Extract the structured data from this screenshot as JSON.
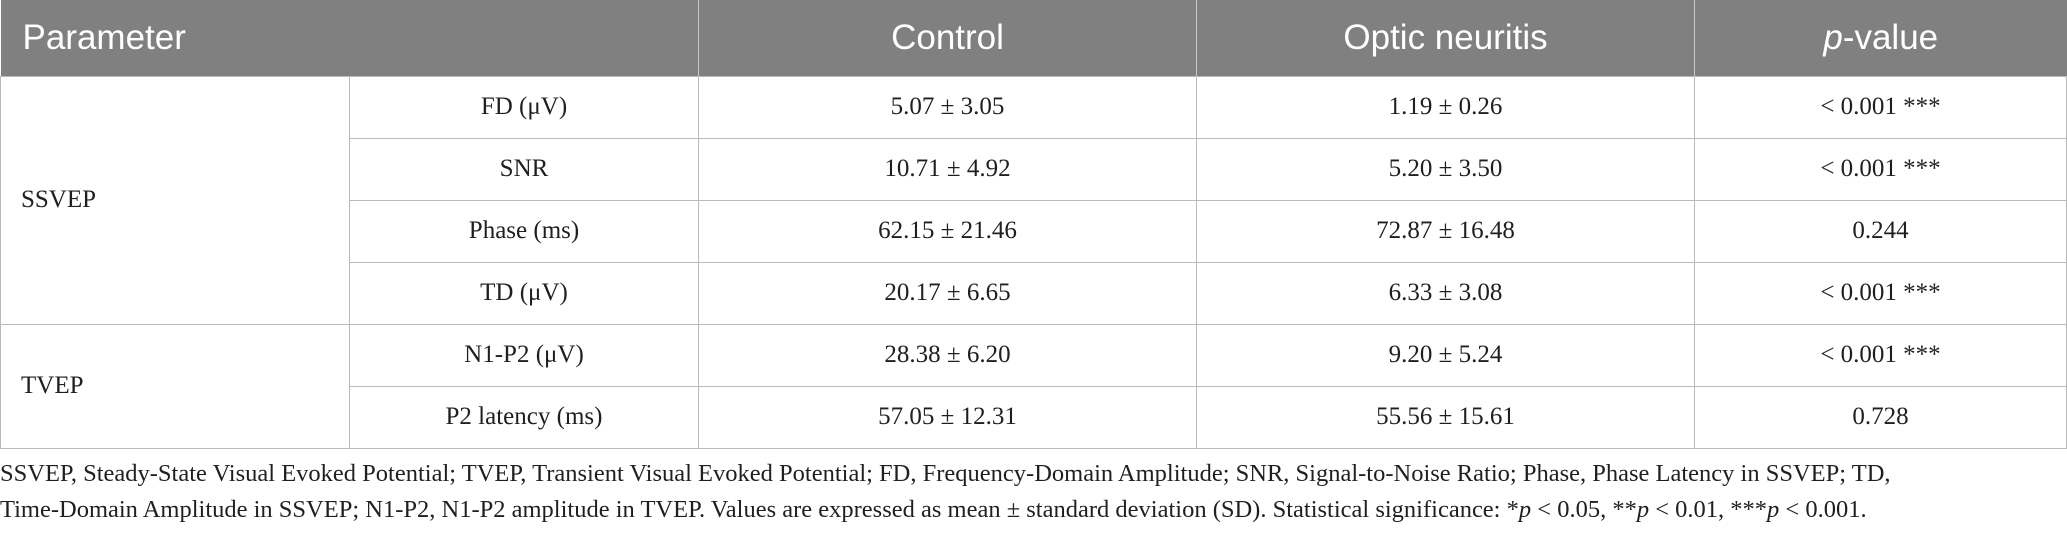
{
  "table": {
    "headers": {
      "parameter": "Parameter",
      "control": "Control",
      "optic_neuritis": "Optic neuritis",
      "p_value_italic": "p",
      "p_value_rest": "-value"
    },
    "groups": [
      {
        "name": "SSVEP",
        "rows": [
          {
            "parameter": "FD (μV)",
            "control": "5.07 ± 3.05",
            "optic_neuritis": "1.19 ± 0.26",
            "p_value": "< 0.001 ***"
          },
          {
            "parameter": "SNR",
            "control": "10.71 ± 4.92",
            "optic_neuritis": "5.20 ± 3.50",
            "p_value": "< 0.001 ***"
          },
          {
            "parameter": "Phase (ms)",
            "control": "62.15 ± 21.46",
            "optic_neuritis": "72.87 ± 16.48",
            "p_value": "0.244"
          },
          {
            "parameter": "TD (μV)",
            "control": "20.17 ± 6.65",
            "optic_neuritis": "6.33 ± 3.08",
            "p_value": "< 0.001 ***"
          }
        ]
      },
      {
        "name": "TVEP",
        "rows": [
          {
            "parameter": "N1-P2 (μV)",
            "control": "28.38 ± 6.20",
            "optic_neuritis": "9.20 ± 5.24",
            "p_value": "< 0.001 ***"
          },
          {
            "parameter": "P2 latency (ms)",
            "control": "57.05 ± 12.31",
            "optic_neuritis": "55.56 ± 15.61",
            "p_value": "0.728"
          }
        ]
      }
    ]
  },
  "footnote": {
    "line1": "SSVEP, Steady-State Visual Evoked Potential; TVEP, Transient Visual Evoked Potential; FD, Frequency-Domain Amplitude; SNR, Signal-to-Noise Ratio; Phase, Phase Latency in SSVEP; TD,",
    "line2_a": "Time-Domain Amplitude in SSVEP; N1-P2, N1-P2 amplitude in TVEP. Values are expressed as mean ± standard deviation (SD). Statistical significance: *",
    "p1": "p",
    "line2_b": " < 0.05, **",
    "p2": "p",
    "line2_c": " < 0.01, ***",
    "p3": "p",
    "line2_d": " < 0.001."
  }
}
